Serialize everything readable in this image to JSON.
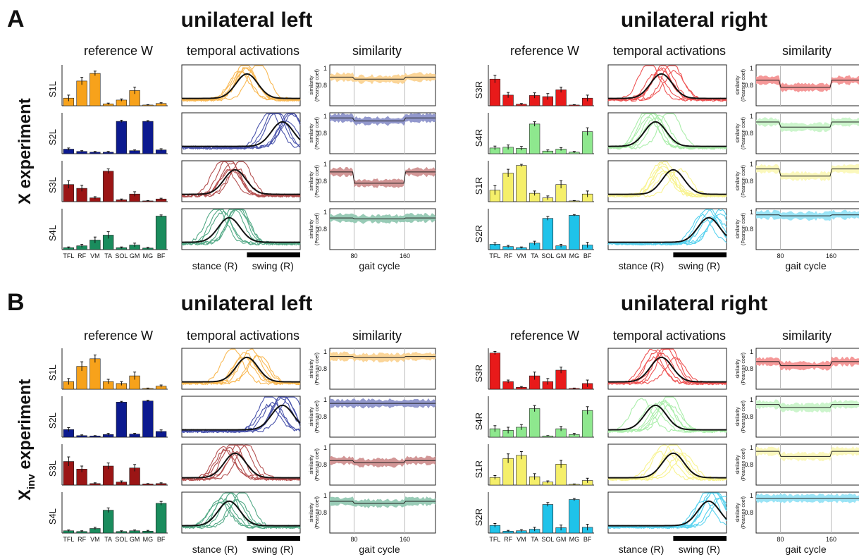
{
  "panels": [
    {
      "letter": "A",
      "experiment_main": "X experiment",
      "experiment_sub": ""
    },
    {
      "letter": "B",
      "experiment_main": "X",
      "experiment_sub": "inv",
      "experiment_tail": " experiment"
    }
  ],
  "titles": {
    "left": "unilateral left",
    "right": "unilateral right"
  },
  "col_headers": {
    "ref": "reference W",
    "temporal": "temporal activations",
    "similarity": "similarity"
  },
  "muscles": [
    "TFL",
    "RF",
    "VM",
    "TA",
    "SOL",
    "GM",
    "MG",
    "BF"
  ],
  "phase_labels": {
    "stance": "stance (R)",
    "swing": "swing (R)"
  },
  "similarity_axis": {
    "ylabel_line1": "similarity",
    "ylabel_line2": "(Pearson coef)",
    "yticks": [
      "1",
      "0.8"
    ],
    "xticks": [
      "80",
      "160"
    ],
    "xlabel": "gait cycle"
  },
  "colors": {
    "S1": "#f7a21b",
    "S2": "#0c1a8f",
    "S3": "#9b1515",
    "S4": "#1a8c5d",
    "S1R": "#f5ef6a",
    "S2R": "#1fc3ea",
    "S3R": "#e81a1a",
    "S4R": "#8ee88e"
  },
  "chart_data": [
    {
      "panel": "A",
      "side": "left",
      "rows": [
        {
          "label": "S1L",
          "color_key": "S1",
          "type": "bar",
          "categories": [
            "TFL",
            "RF",
            "VM",
            "TA",
            "SOL",
            "GM",
            "MG",
            "BF"
          ],
          "values": [
            0.2,
            0.65,
            0.85,
            0.05,
            0.15,
            0.4,
            0.02,
            0.06
          ],
          "errors": [
            0.08,
            0.1,
            0.06,
            0.02,
            0.03,
            0.09,
            0.01,
            0.02
          ],
          "similarity_mean_mid": 0.86,
          "similarity_mean_edges": 0.88
        },
        {
          "label": "S2L",
          "color_key": "S2",
          "type": "bar",
          "categories": [
            "TFL",
            "RF",
            "VM",
            "TA",
            "SOL",
            "GM",
            "MG",
            "BF"
          ],
          "values": [
            0.12,
            0.06,
            0.04,
            0.04,
            0.85,
            0.08,
            0.85,
            0.1
          ],
          "errors": [
            0.03,
            0.02,
            0.02,
            0.02,
            0.03,
            0.02,
            0.02,
            0.03
          ],
          "similarity_mean_mid": 0.92,
          "similarity_mean_edges": 0.95
        },
        {
          "label": "S3L",
          "color_key": "S3",
          "type": "bar",
          "categories": [
            "TFL",
            "RF",
            "VM",
            "TA",
            "SOL",
            "GM",
            "MG",
            "BF"
          ],
          "values": [
            0.45,
            0.35,
            0.1,
            0.8,
            0.05,
            0.2,
            0.02,
            0.07
          ],
          "errors": [
            0.1,
            0.08,
            0.03,
            0.06,
            0.02,
            0.06,
            0.01,
            0.02
          ],
          "similarity_mean_mid": 0.78,
          "similarity_mean_edges": 0.89
        },
        {
          "label": "S4L",
          "color_key": "S4",
          "type": "bar",
          "categories": [
            "TFL",
            "RF",
            "VM",
            "TA",
            "SOL",
            "GM",
            "MG",
            "BF"
          ],
          "values": [
            0.05,
            0.1,
            0.25,
            0.38,
            0.05,
            0.12,
            0.04,
            0.88
          ],
          "errors": [
            0.02,
            0.04,
            0.08,
            0.09,
            0.02,
            0.05,
            0.02,
            0.03
          ],
          "similarity_mean_mid": 0.9,
          "similarity_mean_edges": 0.91
        }
      ]
    },
    {
      "panel": "A",
      "side": "right",
      "rows": [
        {
          "label": "S3R",
          "color_key": "S3R",
          "type": "bar",
          "categories": [
            "TFL",
            "RF",
            "VM",
            "TA",
            "SOL",
            "GM",
            "MG",
            "BF"
          ],
          "values": [
            0.7,
            0.28,
            0.04,
            0.27,
            0.24,
            0.42,
            0.02,
            0.2
          ],
          "errors": [
            0.1,
            0.07,
            0.02,
            0.07,
            0.08,
            0.07,
            0.01,
            0.08
          ],
          "similarity_mean_mid": 0.78,
          "similarity_mean_edges": 0.85
        },
        {
          "label": "S4R",
          "color_key": "S4R",
          "type": "bar",
          "categories": [
            "TFL",
            "RF",
            "VM",
            "TA",
            "SOL",
            "GM",
            "MG",
            "BF"
          ],
          "values": [
            0.15,
            0.17,
            0.14,
            0.78,
            0.07,
            0.12,
            0.04,
            0.58
          ],
          "errors": [
            0.05,
            0.06,
            0.05,
            0.06,
            0.03,
            0.04,
            0.02,
            0.1
          ],
          "similarity_mean_mid": 0.86,
          "similarity_mean_edges": 0.91
        },
        {
          "label": "S1R",
          "color_key": "S1R",
          "type": "bar",
          "categories": [
            "TFL",
            "RF",
            "VM",
            "TA",
            "SOL",
            "GM",
            "MG",
            "BF"
          ],
          "values": [
            0.3,
            0.75,
            0.95,
            0.22,
            0.1,
            0.45,
            0.02,
            0.2
          ],
          "errors": [
            0.12,
            0.1,
            0.03,
            0.06,
            0.05,
            0.1,
            0.01,
            0.08
          ],
          "similarity_mean_mid": 0.85,
          "similarity_mean_edges": 0.92
        },
        {
          "label": "S2R",
          "color_key": "S2R",
          "type": "bar",
          "categories": [
            "TFL",
            "RF",
            "VM",
            "TA",
            "SOL",
            "GM",
            "MG",
            "BF"
          ],
          "values": [
            0.14,
            0.08,
            0.05,
            0.17,
            0.82,
            0.1,
            0.9,
            0.12
          ],
          "errors": [
            0.04,
            0.03,
            0.02,
            0.05,
            0.05,
            0.04,
            0.02,
            0.07
          ],
          "similarity_mean_mid": 0.93,
          "similarity_mean_edges": 0.94
        }
      ]
    },
    {
      "panel": "B",
      "side": "left",
      "rows": [
        {
          "label": "S1L",
          "color_key": "S1",
          "type": "bar",
          "categories": [
            "TFL",
            "RF",
            "VM",
            "TA",
            "SOL",
            "GM",
            "MG",
            "BF"
          ],
          "values": [
            0.2,
            0.6,
            0.8,
            0.2,
            0.15,
            0.35,
            0.02,
            0.08
          ],
          "errors": [
            0.08,
            0.12,
            0.1,
            0.06,
            0.05,
            0.1,
            0.01,
            0.03
          ],
          "similarity_mean_mid": 0.91,
          "similarity_mean_edges": 0.92
        },
        {
          "label": "S2L",
          "color_key": "S2",
          "type": "bar",
          "categories": [
            "TFL",
            "RF",
            "VM",
            "TA",
            "SOL",
            "GM",
            "MG",
            "BF"
          ],
          "values": [
            0.2,
            0.04,
            0.03,
            0.07,
            0.92,
            0.08,
            0.95,
            0.15
          ],
          "errors": [
            0.05,
            0.02,
            0.01,
            0.03,
            0.02,
            0.02,
            0.02,
            0.04
          ],
          "similarity_mean_mid": 0.93,
          "similarity_mean_edges": 0.93
        },
        {
          "label": "S3L",
          "color_key": "S3",
          "type": "bar",
          "categories": [
            "TFL",
            "RF",
            "VM",
            "TA",
            "SOL",
            "GM",
            "MG",
            "BF"
          ],
          "values": [
            0.62,
            0.42,
            0.04,
            0.5,
            0.08,
            0.45,
            0.03,
            0.04
          ],
          "errors": [
            0.12,
            0.08,
            0.02,
            0.08,
            0.03,
            0.09,
            0.01,
            0.02
          ],
          "similarity_mean_mid": 0.82,
          "similarity_mean_edges": 0.84
        },
        {
          "label": "S4L",
          "color_key": "S4",
          "type": "bar",
          "categories": [
            "TFL",
            "RF",
            "VM",
            "TA",
            "SOL",
            "GM",
            "MG",
            "BF"
          ],
          "values": [
            0.06,
            0.04,
            0.12,
            0.6,
            0.04,
            0.06,
            0.05,
            0.78
          ],
          "errors": [
            0.02,
            0.02,
            0.03,
            0.06,
            0.02,
            0.02,
            0.02,
            0.05
          ],
          "similarity_mean_mid": 0.89,
          "similarity_mean_edges": 0.91
        }
      ]
    },
    {
      "panel": "B",
      "side": "right",
      "rows": [
        {
          "label": "S3R",
          "color_key": "S3R",
          "type": "bar",
          "categories": [
            "TFL",
            "RF",
            "VM",
            "TA",
            "SOL",
            "GM",
            "MG",
            "BF"
          ],
          "values": [
            0.95,
            0.2,
            0.05,
            0.35,
            0.2,
            0.5,
            0.02,
            0.15
          ],
          "errors": [
            0.04,
            0.04,
            0.02,
            0.1,
            0.08,
            0.08,
            0.01,
            0.09
          ],
          "similarity_mean_mid": 0.83,
          "similarity_mean_edges": 0.87
        },
        {
          "label": "S4R",
          "color_key": "S4R",
          "type": "bar",
          "categories": [
            "TFL",
            "RF",
            "VM",
            "TA",
            "SOL",
            "GM",
            "MG",
            "BF"
          ],
          "values": [
            0.22,
            0.18,
            0.26,
            0.75,
            0.03,
            0.22,
            0.07,
            0.7
          ],
          "errors": [
            0.08,
            0.08,
            0.07,
            0.08,
            0.01,
            0.06,
            0.03,
            0.1
          ],
          "similarity_mean_mid": 0.89,
          "similarity_mean_edges": 0.92
        },
        {
          "label": "S1R",
          "color_key": "S1R",
          "type": "bar",
          "categories": [
            "TFL",
            "RF",
            "VM",
            "TA",
            "SOL",
            "GM",
            "MG",
            "BF"
          ],
          "values": [
            0.2,
            0.7,
            0.78,
            0.22,
            0.08,
            0.55,
            0.02,
            0.12
          ],
          "errors": [
            0.05,
            0.12,
            0.1,
            0.08,
            0.03,
            0.1,
            0.01,
            0.06
          ],
          "similarity_mean_mid": 0.88,
          "similarity_mean_edges": 0.93
        },
        {
          "label": "S2R",
          "color_key": "S2R",
          "type": "bar",
          "categories": [
            "TFL",
            "RF",
            "VM",
            "TA",
            "SOL",
            "GM",
            "MG",
            "BF"
          ],
          "values": [
            0.2,
            0.05,
            0.06,
            0.1,
            0.75,
            0.14,
            0.88,
            0.15
          ],
          "errors": [
            0.05,
            0.02,
            0.03,
            0.05,
            0.05,
            0.07,
            0.03,
            0.08
          ],
          "similarity_mean_mid": 0.94,
          "similarity_mean_edges": 0.94
        }
      ]
    }
  ]
}
